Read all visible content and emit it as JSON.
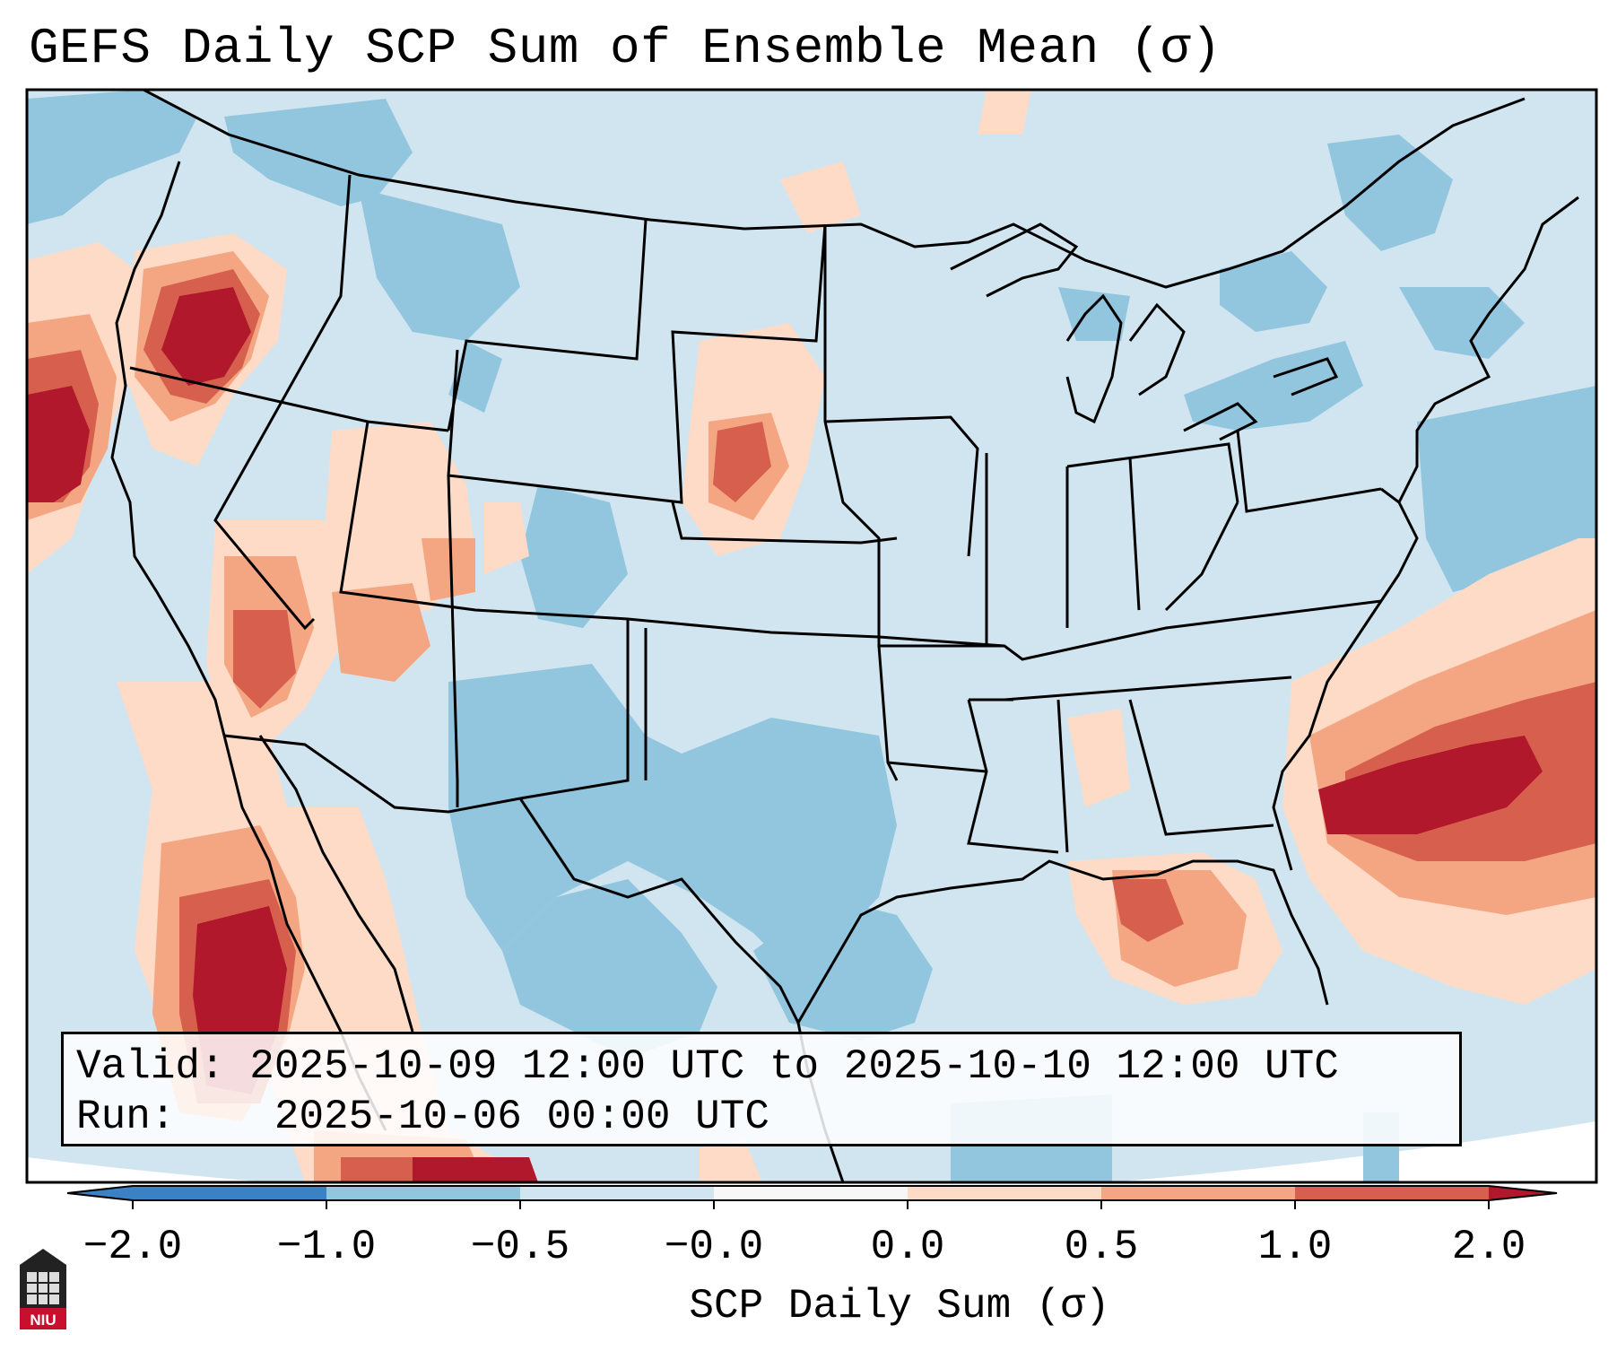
{
  "title": "GEFS Daily SCP Sum of Ensemble Mean (σ)",
  "info": {
    "valid_label": "Valid:",
    "valid_value": "2025-10-09 12:00 UTC to 2025-10-10 12:00 UTC",
    "run_label": "Run:",
    "run_value": "2025-10-06 00:00 UTC"
  },
  "colorbar": {
    "label": "SCP Daily Sum (σ)",
    "ticks": [
      "−2.0",
      "−1.0",
      "−0.5",
      "−0.0",
      "0.0",
      "0.5",
      "1.0",
      "2.0"
    ],
    "colors": [
      "#3b82c4",
      "#92c5de",
      "#d1e5f0",
      "#f7f7f7",
      "#fddbc7",
      "#f4a582",
      "#d6604d",
      "#b2182b"
    ]
  },
  "logo": {
    "text": "NIU"
  },
  "chart_data": {
    "type": "heatmap",
    "title": "GEFS Daily SCP Sum of Ensemble Mean (σ)",
    "colorbar_label": "SCP Daily Sum (σ)",
    "levels": [
      -2.0,
      -1.0,
      -0.5,
      -0.0,
      0.0,
      0.5,
      1.0,
      2.0
    ],
    "extend": "both",
    "region": "CONUS",
    "positive_anomaly_areas": [
      "Northern California/Oregon coast",
      "Western Nebraska/Dakotas",
      "Southwest US/Arizona",
      "Northwest Mexico/Gulf of California",
      "Gulf of Mexico south of Florida panhandle",
      "Western Atlantic off Southeast coast"
    ],
    "negative_anomaly_areas": [
      "Texas",
      "Pacific Northwest",
      "Northeast US"
    ]
  }
}
